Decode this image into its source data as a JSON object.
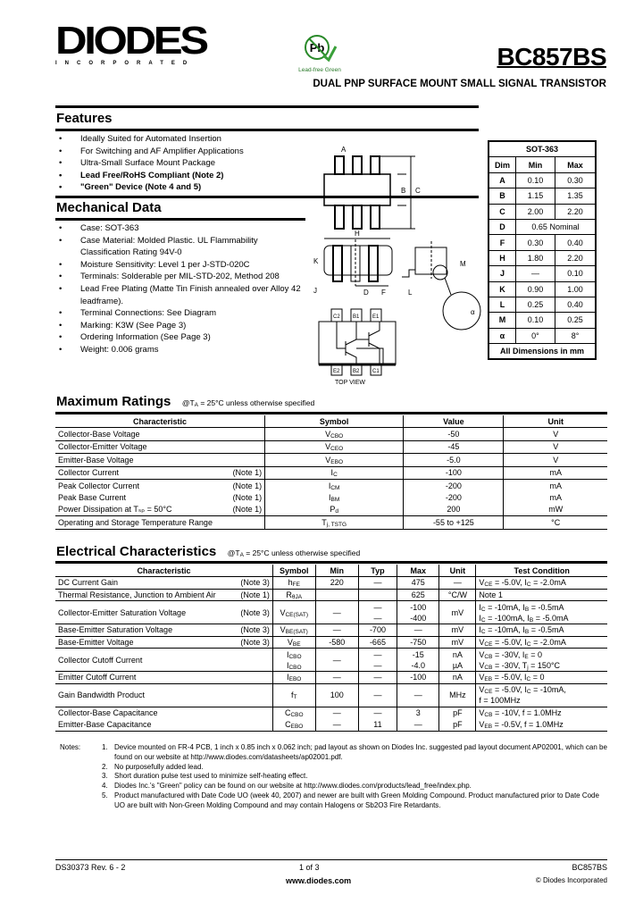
{
  "header": {
    "logo_text": "DIODES",
    "logo_subtext": "INCORPORATED",
    "pb_badge_text": "Pb",
    "pb_badge_caption": "Lead-free Green",
    "part_number": "BC857BS",
    "subtitle": "DUAL PNP SURFACE MOUNT SMALL SIGNAL TRANSISTOR"
  },
  "features": {
    "title": "Features",
    "items": [
      {
        "text": "Ideally Suited for Automated Insertion",
        "bold": false
      },
      {
        "text": "For Switching and AF Amplifier Applications",
        "bold": false
      },
      {
        "text": "Ultra-Small Surface Mount Package",
        "bold": false
      },
      {
        "text": "Lead Free/RoHS Compliant  (Note 2)",
        "bold": true
      },
      {
        "text": "\"Green\" Device (Note 4 and 5)",
        "bold": true
      }
    ]
  },
  "mechanical": {
    "title": "Mechanical Data",
    "items": [
      "Case: SOT-363",
      "Case Material:  Molded Plastic.  UL Flammability Classification Rating 94V-0",
      "Moisture Sensitivity:  Level 1 per J-STD-020C",
      "Terminals: Solderable per MIL-STD-202, Method 208",
      "Lead Free Plating (Matte Tin Finish annealed over Alloy 42 leadframe).",
      "Terminal Connections: See Diagram",
      "Marking: K3W (See Page 3)",
      "Ordering Information (See Page 3)",
      "Weight: 0.006 grams"
    ]
  },
  "diagram": {
    "labels": {
      "A": "A",
      "B": "B",
      "C": "C",
      "H": "H",
      "K": "K",
      "J": "J",
      "D": "D",
      "F": "F",
      "L": "L",
      "M": "M",
      "alpha": "α"
    },
    "pins_top": [
      "C2",
      "B1",
      "E1"
    ],
    "pins_bottom": [
      "E2",
      "B2",
      "C1"
    ],
    "caption": "TOP VIEW"
  },
  "dimensions": {
    "title": "SOT-363",
    "headers": [
      "Dim",
      "Min",
      "Max"
    ],
    "rows": [
      [
        "A",
        "0.10",
        "0.30"
      ],
      [
        "B",
        "1.15",
        "1.35"
      ],
      [
        "C",
        "2.00",
        "2.20"
      ],
      [
        "D",
        "0.65 Nominal"
      ],
      [
        "F",
        "0.30",
        "0.40"
      ],
      [
        "H",
        "1.80",
        "2.20"
      ],
      [
        "J",
        "—",
        "0.10"
      ],
      [
        "K",
        "0.90",
        "1.00"
      ],
      [
        "L",
        "0.25",
        "0.40"
      ],
      [
        "M",
        "0.10",
        "0.25"
      ],
      [
        "α",
        "0°",
        "8°"
      ]
    ],
    "footer": "All Dimensions in mm"
  },
  "max_ratings": {
    "title": "Maximum Ratings",
    "condition": "@T",
    "condition_sub": "A",
    "condition_rest": " = 25°C unless otherwise specified",
    "headers": [
      "Characteristic",
      "Symbol",
      "Value",
      "Unit"
    ],
    "rows": [
      {
        "char": "Collector-Base Voltage",
        "note": "",
        "sym": "V",
        "sub": "CBO",
        "value": "-50",
        "unit": "V",
        "sep": true
      },
      {
        "char": "Collector-Emitter Voltage",
        "note": "",
        "sym": "V",
        "sub": "CEO",
        "value": "-45",
        "unit": "V",
        "sep": true
      },
      {
        "char": "Emitter-Base Voltage",
        "note": "",
        "sym": "V",
        "sub": "EBO",
        "value": "-5.0",
        "unit": "V",
        "sep": true
      },
      {
        "char": "Collector Current",
        "note": "(Note 1)",
        "sym": "I",
        "sub": "C",
        "value": "-100",
        "unit": "mA",
        "sep": true
      },
      {
        "char": "Peak Collector Current",
        "note": "(Note 1)",
        "sym": "I",
        "sub": "CM",
        "value": "-200",
        "unit": "mA",
        "sep": false
      },
      {
        "char": "Peak Base Current",
        "note": "(Note 1)",
        "sym": "I",
        "sub": "BM",
        "value": "-200",
        "unit": "mA",
        "sep": false
      },
      {
        "char": "Power Dissipation at Tₛₚ = 50°C",
        "note": "(Note 1)",
        "sym": "P",
        "sub": "d",
        "value": "200",
        "unit": "mW",
        "sep": true
      },
      {
        "char": "Operating and Storage Temperature Range",
        "note": "",
        "sym": "T",
        "sub": "j, TSTG",
        "value": "-55 to +125",
        "unit": "°C",
        "sep": true
      }
    ]
  },
  "electrical": {
    "title": "Electrical Characteristics",
    "condition": "@T",
    "condition_sub": "A",
    "condition_rest": " = 25°C unless otherwise specified",
    "headers": [
      "Characteristic",
      "Symbol",
      "Min",
      "Typ",
      "Max",
      "Unit",
      "Test Condition"
    ],
    "rows": [
      {
        "char": "DC Current Gain",
        "note": "(Note 3)",
        "sym": [
          "h<sub>FE</sub>"
        ],
        "min": [
          "220"
        ],
        "typ": [
          "—"
        ],
        "max": [
          "475"
        ],
        "unit": [
          "—"
        ],
        "cond": [
          "V<sub>CE</sub> = -5.0V, I<sub>C</sub> = -2.0mA"
        ]
      },
      {
        "char": "Thermal Resistance, Junction to Ambient Air",
        "note": "(Note 1)",
        "sym": [
          "R<sub>θJA</sub>"
        ],
        "min": [
          ""
        ],
        "typ": [
          ""
        ],
        "max": [
          "625"
        ],
        "unit": [
          "°C/W"
        ],
        "cond": [
          "Note 1"
        ]
      },
      {
        "char": "Collector-Emitter Saturation Voltage",
        "note": "(Note 3)",
        "sym": [
          "V<sub>CE(SAT)</sub>"
        ],
        "min": [
          "—"
        ],
        "typ": [
          "—",
          "—"
        ],
        "max": [
          "-100",
          "-400"
        ],
        "unit": [
          "mV"
        ],
        "cond": [
          "I<sub>C</sub> = -10mA, I<sub>B</sub> = -0.5mA",
          "I<sub>C</sub> = -100mA, I<sub>B</sub> = -5.0mA"
        ]
      },
      {
        "char": "Base-Emitter Saturation Voltage",
        "note": "(Note 3)",
        "sym": [
          "V<sub>BE(SAT)</sub>"
        ],
        "min": [
          "—"
        ],
        "typ": [
          "-700"
        ],
        "max": [
          "—"
        ],
        "unit": [
          "mV"
        ],
        "cond": [
          "I<sub>C</sub> = -10mA, I<sub>B</sub> = -0.5mA"
        ]
      },
      {
        "char": "Base-Emitter Voltage",
        "note": "(Note 3)",
        "sym": [
          "V<sub>BE</sub>"
        ],
        "min": [
          "-580"
        ],
        "typ": [
          "-665"
        ],
        "max": [
          "-750"
        ],
        "unit": [
          "mV"
        ],
        "cond": [
          "V<sub>CE</sub> = -5.0V, I<sub>C</sub> = -2.0mA"
        ]
      },
      {
        "char": "Collector Cutoff Current",
        "note": "",
        "sym": [
          "I<sub>CBO</sub>",
          "I<sub>CBO</sub>"
        ],
        "min": [
          "—"
        ],
        "typ": [
          "—",
          "—"
        ],
        "max": [
          "-15",
          "-4.0"
        ],
        "unit": [
          "nA",
          "µA"
        ],
        "cond": [
          "V<sub>CB</sub> = -30V, I<sub>E</sub> = 0",
          "V<sub>CB</sub> = -30V, T<sub>j</sub> = 150°C"
        ]
      },
      {
        "char": "Emitter Cutoff Current",
        "note": "",
        "sym": [
          "I<sub>EBO</sub>"
        ],
        "min": [
          "—"
        ],
        "typ": [
          "—"
        ],
        "max": [
          "-100"
        ],
        "unit": [
          "nA"
        ],
        "cond": [
          "V<sub>EB</sub> = -5.0V, I<sub>C</sub> = 0"
        ]
      },
      {
        "char": "Gain Bandwidth Product",
        "note": "",
        "sym": [
          "f<sub>T</sub>"
        ],
        "min": [
          "100"
        ],
        "typ": [
          "—"
        ],
        "max": [
          "—"
        ],
        "unit": [
          "MHz"
        ],
        "cond": [
          "V<sub>CE</sub> = -5.0V, I<sub>C</sub> = -10mA,",
          "f = 100MHz"
        ]
      },
      {
        "char": "Collector-Base Capacitance",
        "note": "",
        "sym": [
          "C<sub>CBO</sub>"
        ],
        "min": [
          "—"
        ],
        "typ": [
          "—"
        ],
        "max": [
          "3"
        ],
        "unit": [
          "pF"
        ],
        "cond": [
          "V<sub>CB</sub> = -10V, f = 1.0MHz"
        ],
        "nosep": true
      },
      {
        "char": "Emitter-Base Capacitance",
        "note": "",
        "sym": [
          "C<sub>EBO</sub>"
        ],
        "min": [
          "—"
        ],
        "typ": [
          "11"
        ],
        "max": [
          "—"
        ],
        "unit": [
          "pF"
        ],
        "cond": [
          "V<sub>EB</sub> = -0.5V, f = 1.0MHz"
        ]
      }
    ]
  },
  "notes": {
    "label": "Notes:",
    "items": [
      "Device mounted on FR-4 PCB, 1 inch x 0.85 inch x 0.062 inch; pad layout as shown on Diodes Inc. suggested pad layout document AP02001, which can be found on our website at http://www.diodes.com/datasheets/ap02001.pdf.",
      "No purposefully added lead.",
      "Short duration pulse test used to minimize self-heating effect.",
      "Diodes Inc.'s \"Green\" policy can be found on our website at http://www.diodes.com/products/lead_free/index.php.",
      "Product manufactured with Date Code UO (week 40, 2007) and newer are built with Green Molding Compound. Product manufactured prior to Date Code UO are built with Non-Green Molding Compound and may contain Halogens or Sb2O3 Fire Retardants."
    ]
  },
  "footer": {
    "doc_id": "DS30373 Rev. 6 - 2",
    "page": "1 of 3",
    "website": "www.diodes.com",
    "part": "BC857BS",
    "copyright": "© Diodes Incorporated"
  }
}
